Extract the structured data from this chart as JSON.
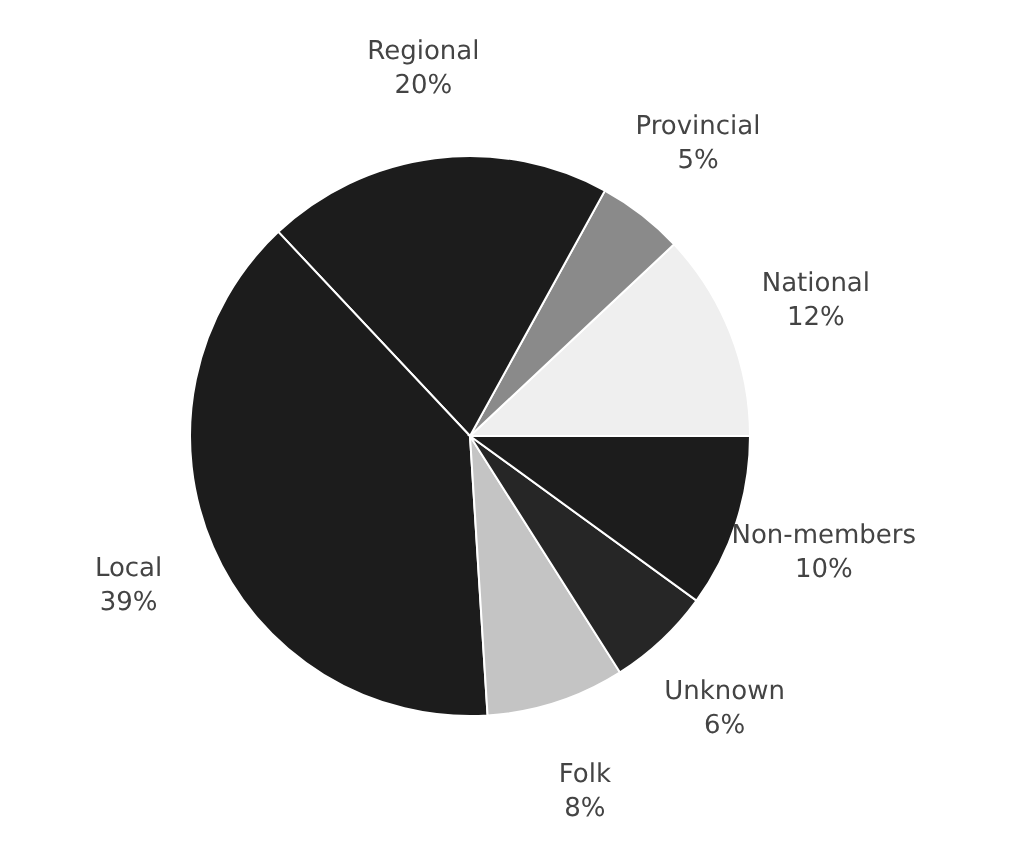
{
  "chart_data": {
    "type": "pie",
    "categories": [
      "National",
      "Provincial",
      "Regional",
      "Local",
      "Folk",
      "Unknown",
      "Non-members"
    ],
    "values": [
      12,
      5,
      20,
      39,
      8,
      6,
      10
    ],
    "value_labels": [
      "12%",
      "5%",
      "20%",
      "39%",
      "8%",
      "6%",
      "10%"
    ],
    "colors": [
      "#efefef",
      "#8a8a8a",
      "#1c1c1c",
      "#1c1c1c",
      "#c4c4c4",
      "#262626",
      "#1c1c1c"
    ],
    "legend": false
  }
}
